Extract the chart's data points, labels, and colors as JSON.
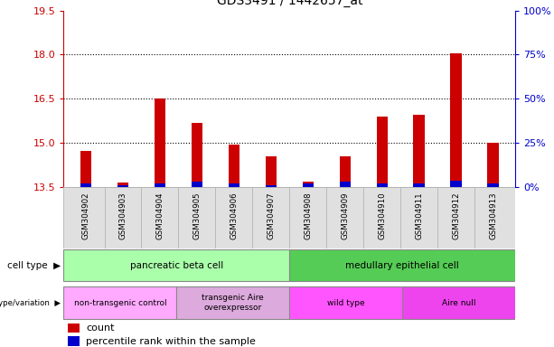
{
  "title": "GDS3491 / 1442657_at",
  "samples": [
    "GSM304902",
    "GSM304903",
    "GSM304904",
    "GSM304905",
    "GSM304906",
    "GSM304907",
    "GSM304908",
    "GSM304909",
    "GSM304910",
    "GSM304911",
    "GSM304912",
    "GSM304913"
  ],
  "count_values": [
    14.75,
    13.65,
    16.5,
    15.7,
    14.95,
    14.55,
    13.68,
    14.55,
    15.9,
    15.95,
    18.05,
    15.0
  ],
  "percentile_values": [
    2,
    1,
    2,
    3,
    2,
    1,
    2,
    3,
    2,
    2,
    4,
    2
  ],
  "baseline": 13.5,
  "ylim_left": [
    13.5,
    19.5
  ],
  "ylim_right": [
    0,
    100
  ],
  "yticks_left": [
    13.5,
    15,
    16.5,
    18,
    19.5
  ],
  "yticks_right": [
    0,
    25,
    50,
    75,
    100
  ],
  "left_color": "#cc0000",
  "right_color": "#0000cc",
  "bar_color_red": "#cc0000",
  "bar_color_blue": "#0000cc",
  "cell_type_groups": [
    {
      "label": "pancreatic beta cell",
      "start": 0,
      "end": 5,
      "color": "#aaffaa"
    },
    {
      "label": "medullary epithelial cell",
      "start": 6,
      "end": 11,
      "color": "#55cc55"
    }
  ],
  "genotype_groups": [
    {
      "label": "non-transgenic control",
      "start": 0,
      "end": 2,
      "color": "#ffaaff"
    },
    {
      "label": "transgenic Aire\noverexpressor",
      "start": 3,
      "end": 5,
      "color": "#ddaadd"
    },
    {
      "label": "wild type",
      "start": 6,
      "end": 8,
      "color": "#ff55ff"
    },
    {
      "label": "Aire null",
      "start": 9,
      "end": 11,
      "color": "#ee44ee"
    }
  ]
}
